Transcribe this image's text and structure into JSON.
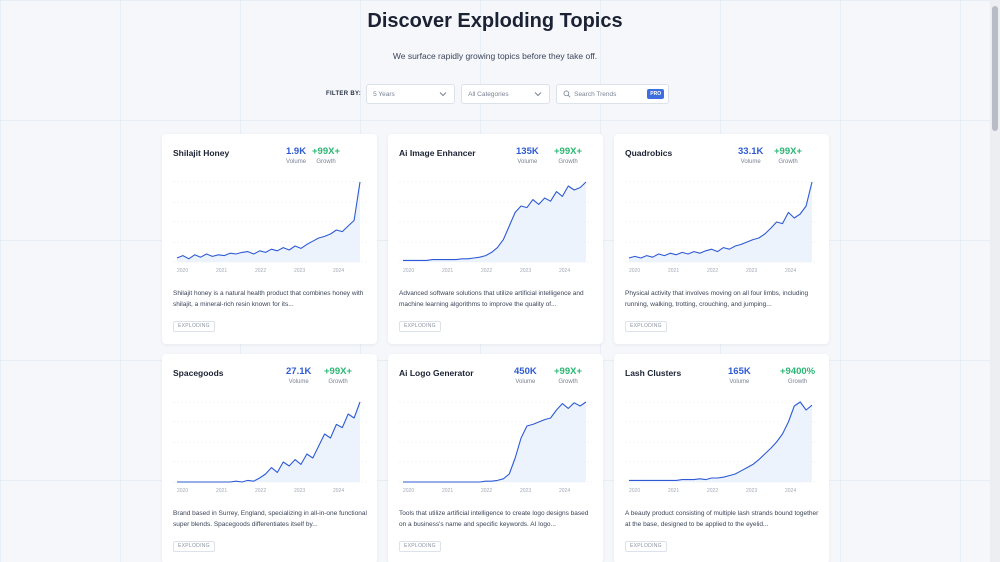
{
  "header": {
    "title": "Discover Exploding Topics",
    "subtitle": "We surface rapidly growing topics before they take off."
  },
  "filters": {
    "label": "FILTER BY:",
    "period": "5 Years",
    "category": "All Categories",
    "search_placeholder": "Search Trends",
    "pro_badge": "PRO"
  },
  "years": [
    "2020",
    "2021",
    "2022",
    "2023",
    "2024"
  ],
  "cards": [
    {
      "name": "Shilajit Honey",
      "volume": "1.9K",
      "volume_label": "Volume",
      "growth": "+99X+",
      "growth_label": "Growth",
      "description": "Shilajit honey is a natural health product that combines honey with shilajit, a mineral-rich resin known for its...",
      "tag": "EXPLODING",
      "trend": [
        0.05,
        0.08,
        0.04,
        0.09,
        0.06,
        0.1,
        0.07,
        0.09,
        0.08,
        0.11,
        0.1,
        0.12,
        0.13,
        0.1,
        0.14,
        0.12,
        0.16,
        0.14,
        0.18,
        0.15,
        0.2,
        0.17,
        0.22,
        0.26,
        0.3,
        0.32,
        0.35,
        0.4,
        0.38,
        0.45,
        0.52,
        1.0
      ]
    },
    {
      "name": "Ai Image Enhancer",
      "volume": "135K",
      "volume_label": "Volume",
      "growth": "+99X+",
      "growth_label": "Growth",
      "description": "Advanced software solutions that utilize artificial intelligence and machine learning algorithms to improve the quality of...",
      "tag": "EXPLODING",
      "trend": [
        0.02,
        0.02,
        0.02,
        0.02,
        0.02,
        0.03,
        0.03,
        0.03,
        0.03,
        0.03,
        0.04,
        0.04,
        0.05,
        0.06,
        0.08,
        0.12,
        0.18,
        0.28,
        0.45,
        0.62,
        0.7,
        0.68,
        0.78,
        0.72,
        0.8,
        0.76,
        0.88,
        0.82,
        0.95,
        0.9,
        0.93,
        1.0
      ]
    },
    {
      "name": "Quadrobics",
      "volume": "33.1K",
      "volume_label": "Volume",
      "growth": "+99X+",
      "growth_label": "Growth",
      "description": "Physical activity that involves moving on all four limbs, including running, walking, trotting, crouching, and jumping...",
      "tag": "EXPLODING",
      "trend": [
        0.05,
        0.07,
        0.05,
        0.08,
        0.06,
        0.1,
        0.08,
        0.11,
        0.09,
        0.12,
        0.1,
        0.13,
        0.11,
        0.14,
        0.16,
        0.13,
        0.18,
        0.16,
        0.2,
        0.22,
        0.25,
        0.28,
        0.3,
        0.35,
        0.42,
        0.5,
        0.48,
        0.62,
        0.55,
        0.6,
        0.7,
        1.0
      ]
    },
    {
      "name": "Spacegoods",
      "volume": "27.1K",
      "volume_label": "Volume",
      "growth": "+99X+",
      "growth_label": "Growth",
      "description": "Brand based in Surrey, England, specializing in all-in-one functional super blends. Spacegoods differentiates itself by...",
      "tag": "EXPLODING",
      "trend": [
        0.0,
        0.0,
        0.0,
        0.0,
        0.0,
        0.0,
        0.0,
        0.0,
        0.0,
        0.0,
        0.01,
        0.0,
        0.02,
        0.01,
        0.05,
        0.1,
        0.18,
        0.12,
        0.25,
        0.2,
        0.28,
        0.22,
        0.35,
        0.3,
        0.45,
        0.6,
        0.55,
        0.72,
        0.68,
        0.85,
        0.8,
        1.0
      ]
    },
    {
      "name": "Ai Logo Generator",
      "volume": "450K",
      "volume_label": "Volume",
      "growth": "+99X+",
      "growth_label": "Growth",
      "description": "Tools that utilize artificial intelligence to create logo designs based on a business's name and specific keywords. AI logo...",
      "tag": "EXPLODING",
      "trend": [
        0.0,
        0.0,
        0.0,
        0.0,
        0.0,
        0.0,
        0.0,
        0.0,
        0.0,
        0.0,
        0.0,
        0.0,
        0.0,
        0.0,
        0.01,
        0.01,
        0.02,
        0.04,
        0.1,
        0.3,
        0.55,
        0.7,
        0.72,
        0.75,
        0.78,
        0.8,
        0.9,
        0.98,
        0.92,
        0.99,
        0.95,
        1.0
      ]
    },
    {
      "name": "Lash Clusters",
      "volume": "165K",
      "volume_label": "Volume",
      "growth": "+9400%",
      "growth_label": "Growth",
      "description": "A beauty product consisting of multiple lash strands bound together at the base, designed to be applied to the eyelid...",
      "tag": "EXPLODING",
      "trend": [
        0.02,
        0.02,
        0.02,
        0.02,
        0.02,
        0.02,
        0.02,
        0.02,
        0.02,
        0.03,
        0.03,
        0.03,
        0.04,
        0.03,
        0.05,
        0.05,
        0.06,
        0.08,
        0.1,
        0.14,
        0.18,
        0.22,
        0.28,
        0.35,
        0.42,
        0.5,
        0.6,
        0.75,
        0.95,
        1.0,
        0.9,
        0.96
      ]
    }
  ]
}
